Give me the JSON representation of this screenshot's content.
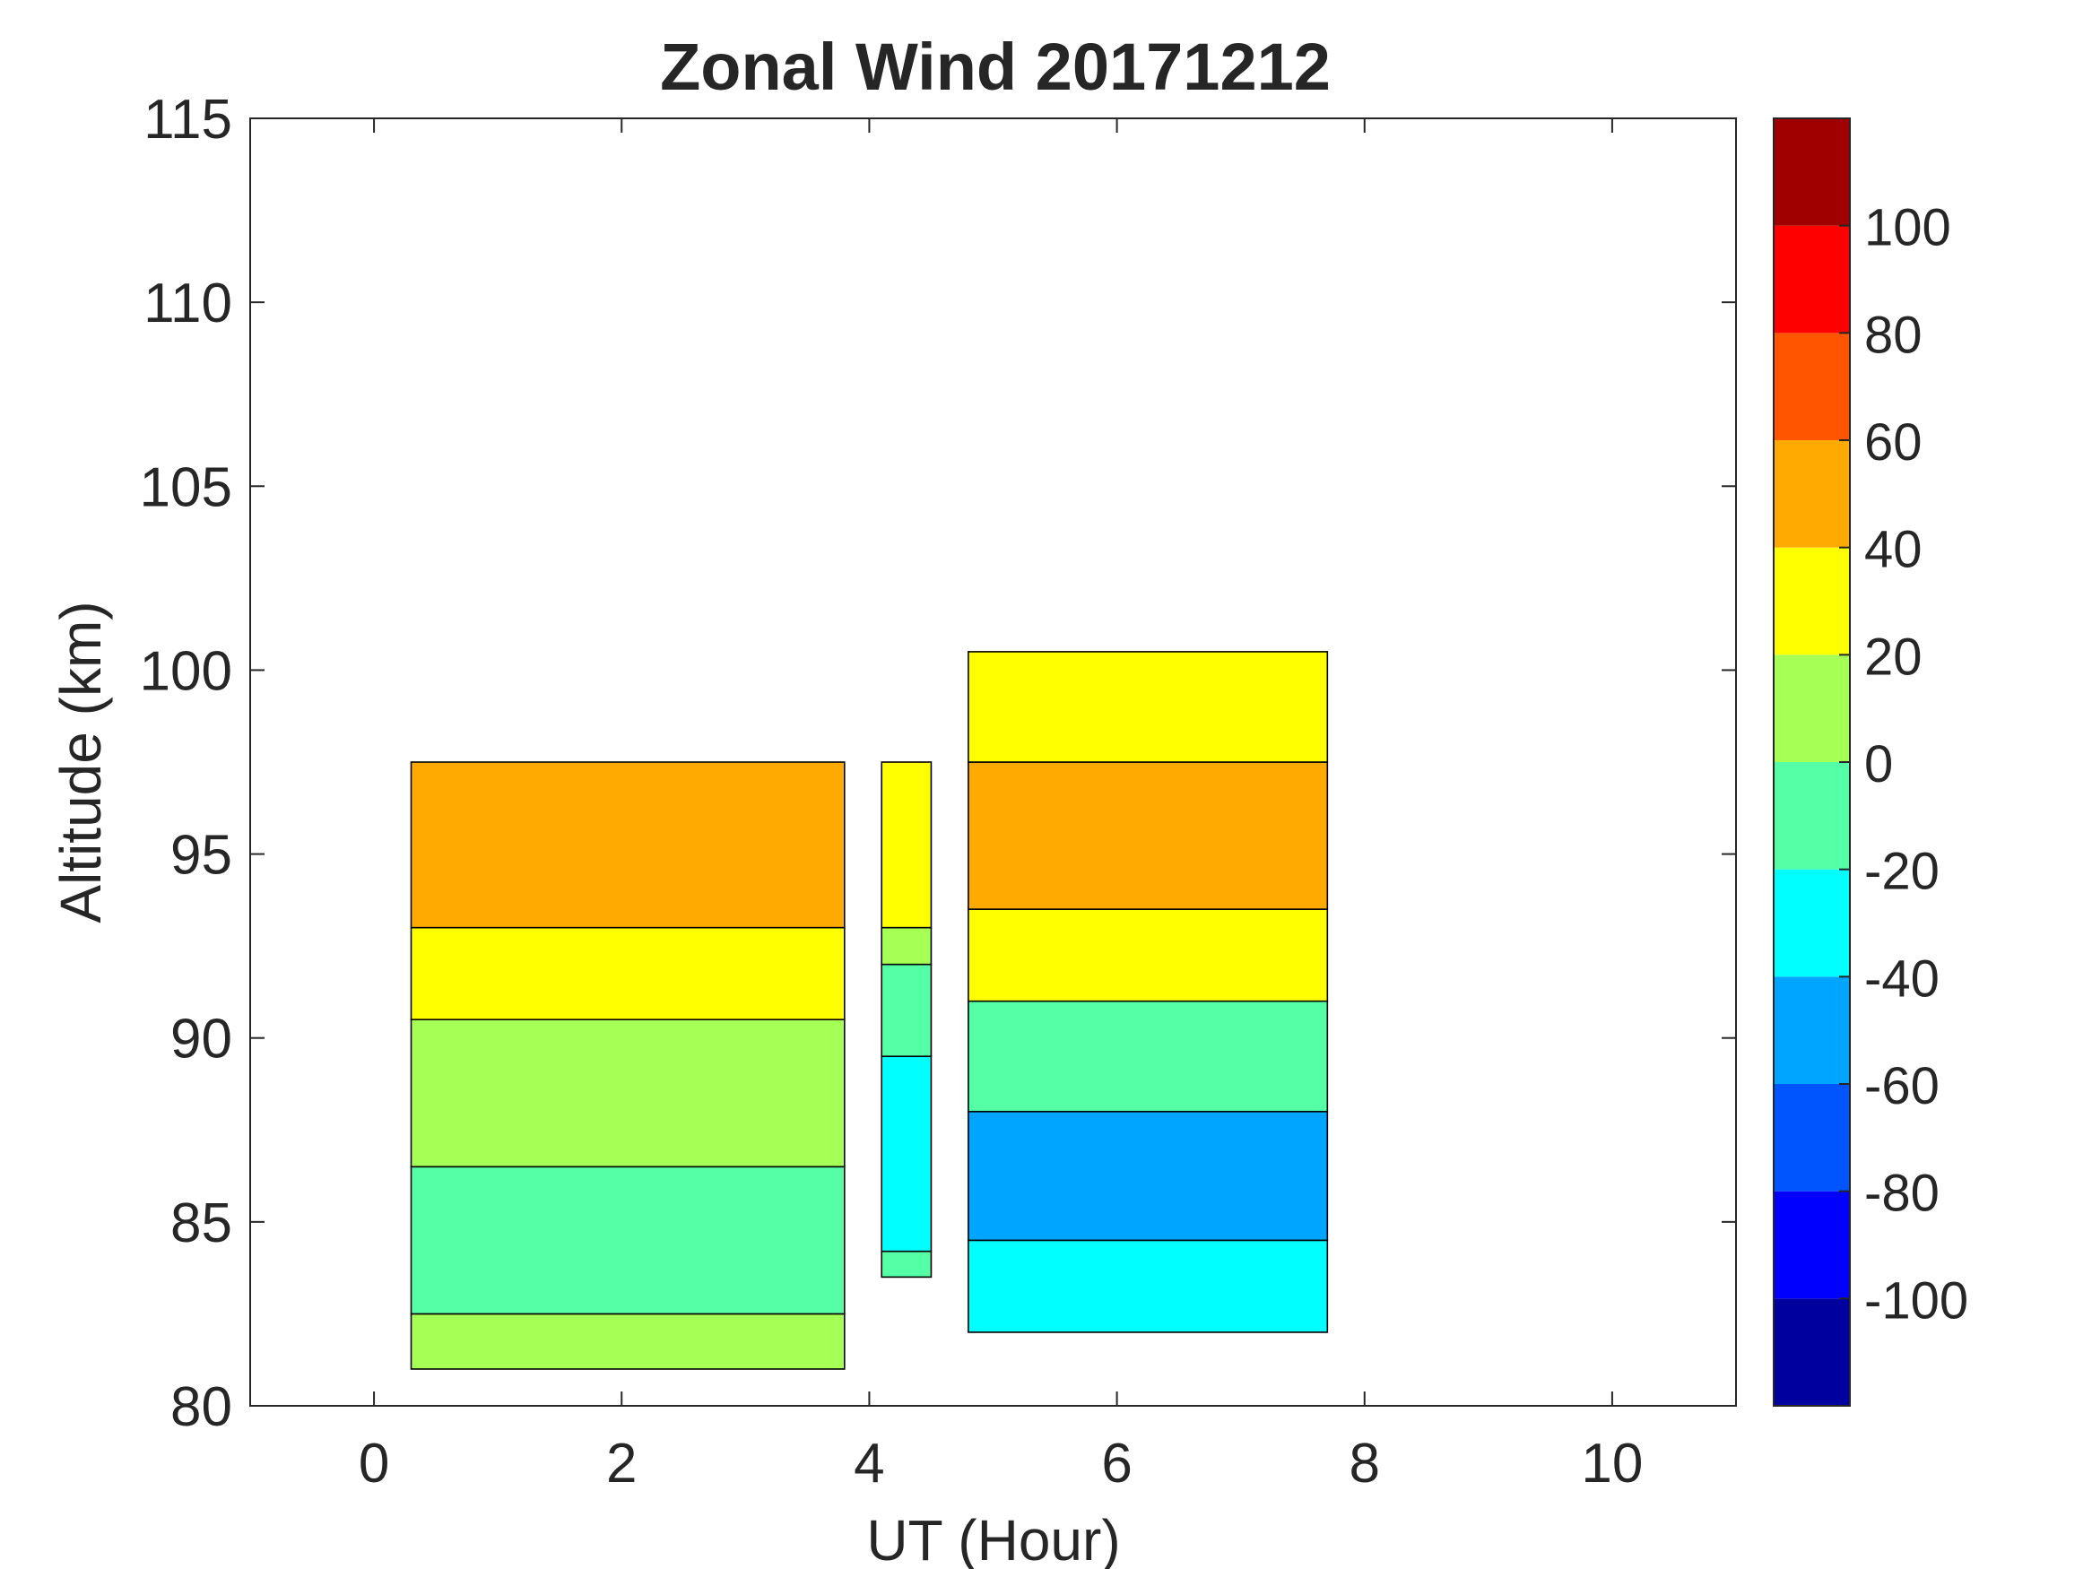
{
  "chart_data": {
    "type": "heatmap",
    "subtype": "filled-contour",
    "title": "Zonal Wind 20171212",
    "xlabel": "UT (Hour)",
    "ylabel": "Altitude (km)",
    "xlim": [
      -1,
      11
    ],
    "ylim": [
      80,
      115
    ],
    "x_ticks": [
      0,
      2,
      4,
      6,
      8,
      10
    ],
    "y_ticks": [
      80,
      85,
      90,
      95,
      100,
      105,
      110,
      115
    ],
    "grid": false,
    "colorbar": {
      "location": "right",
      "range": [
        -120,
        120
      ],
      "step": 20,
      "tick_labels": [
        -100,
        -80,
        -60,
        -40,
        -20,
        0,
        20,
        40,
        60,
        80,
        100
      ],
      "colors": [
        "#00009E",
        "#0000FF",
        "#0055FF",
        "#00A5FF",
        "#00FFFF",
        "#55FFA5",
        "#A5FF55",
        "#FFFF00",
        "#FFAA00",
        "#FF5500",
        "#FF0000",
        "#A00000"
      ]
    },
    "regions": [
      {
        "x": [
          0.3,
          3.8
        ],
        "y": [
          81,
          98
        ],
        "levels": [
          {
            "y": [
              81,
              82.5
            ],
            "value": 10
          },
          {
            "y": [
              82.5,
              86.5
            ],
            "value": -10
          },
          {
            "y": [
              86.5,
              90.5
            ],
            "value": 10
          },
          {
            "y": [
              90.5,
              93
            ],
            "value": 30
          },
          {
            "y": [
              93,
              97.5
            ],
            "value": 50
          }
        ]
      },
      {
        "x": [
          4.1,
          4.5
        ],
        "y": [
          83.5,
          97.5
        ],
        "levels": [
          {
            "y": [
              83.5,
              84.2
            ],
            "value": -10
          },
          {
            "y": [
              84.2,
              89.5
            ],
            "value": -30
          },
          {
            "y": [
              89.5,
              92
            ],
            "value": -10
          },
          {
            "y": [
              92,
              93
            ],
            "value": 10
          },
          {
            "y": [
              93,
              97.5
            ],
            "value": 30
          }
        ]
      },
      {
        "x": [
          4.8,
          7.7
        ],
        "y": [
          82,
          100.5
        ],
        "levels": [
          {
            "y": [
              82,
              84.5
            ],
            "value": -30
          },
          {
            "y": [
              84.5,
              88
            ],
            "value": -50
          },
          {
            "y": [
              88,
              91
            ],
            "value": -10
          },
          {
            "y": [
              91,
              93.5
            ],
            "value": 30
          },
          {
            "y": [
              93.5,
              97.5
            ],
            "value": 50
          },
          {
            "y": [
              97.5,
              100.5
            ],
            "value": 30
          }
        ]
      }
    ]
  }
}
